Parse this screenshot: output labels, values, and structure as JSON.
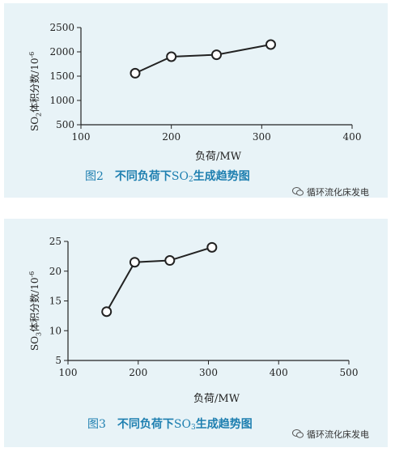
{
  "chart_data": [
    {
      "type": "line",
      "caption_num": "图2",
      "caption_pre": "不同负荷下",
      "caption_so": "SO",
      "caption_sub": "2",
      "caption_post": "生成趋势图",
      "xlabel": "负荷/MW",
      "ylabel_pre": "SO",
      "ylabel_sub": "2",
      "ylabel_post": "体积分数/10",
      "ylabel_sup": "-6",
      "xlim": [
        100,
        400
      ],
      "ylim": [
        500,
        2500
      ],
      "xticks": [
        100,
        200,
        300,
        400
      ],
      "yticks": [
        500,
        1000,
        1500,
        2000,
        2500
      ],
      "x": [
        160,
        200,
        250,
        310
      ],
      "y": [
        1560,
        1900,
        1940,
        2150
      ]
    },
    {
      "type": "line",
      "caption_num": "图3",
      "caption_pre": "不同负荷下",
      "caption_so": "SO",
      "caption_sub": "3",
      "caption_post": "生成趋势图",
      "xlabel": "负荷/MW",
      "ylabel_pre": "SO",
      "ylabel_sub": "3",
      "ylabel_post": "体积分数/10",
      "ylabel_sup": "-6",
      "xlim": [
        100,
        500
      ],
      "ylim": [
        5,
        25
      ],
      "xticks": [
        100,
        200,
        300,
        400,
        500
      ],
      "yticks": [
        5,
        10,
        15,
        20,
        25
      ],
      "x": [
        155,
        195,
        245,
        305
      ],
      "y": [
        13.2,
        21.5,
        21.8,
        24.0
      ]
    }
  ],
  "watermark": {
    "text": "循环流化床发电",
    "icon": "wechat-icon"
  },
  "colors": {
    "panel_bg": "#e8f3f7",
    "caption": "#1e7fb0",
    "line": "#222222"
  }
}
